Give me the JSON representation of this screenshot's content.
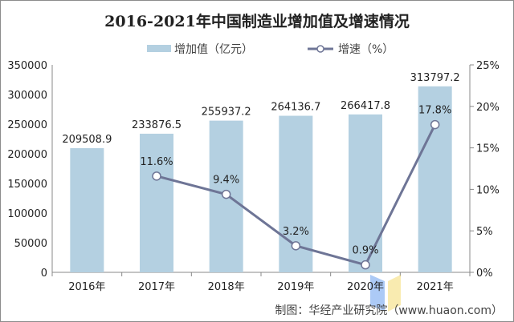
{
  "chart_data": {
    "type": "bar+line",
    "title": "2016-2021年中国制造业增加值及增速情况",
    "categories": [
      "2016年",
      "2017年",
      "2018年",
      "2019年",
      "2020年",
      "2021年"
    ],
    "series": [
      {
        "name": "增加值（亿元）",
        "type": "bar",
        "axis": "left",
        "values": [
          209508.9,
          233876.5,
          255937.2,
          264136.7,
          266417.8,
          313797.2
        ],
        "labels": [
          "209508.9",
          "233876.5",
          "255937.2",
          "264136.7",
          "266417.8",
          "313797.2"
        ],
        "color": "#b4d0e1"
      },
      {
        "name": "增速（%）",
        "type": "line",
        "axis": "right",
        "values": [
          null,
          11.6,
          9.4,
          3.2,
          0.9,
          17.8
        ],
        "labels": [
          "",
          "11.6%",
          "9.4%",
          "3.2%",
          "0.9%",
          "17.8%"
        ],
        "color": "#6e7596"
      }
    ],
    "left_axis": {
      "ylim": [
        0,
        350000
      ],
      "ticks": [
        "0",
        "50000",
        "100000",
        "150000",
        "200000",
        "250000",
        "300000",
        "350000"
      ]
    },
    "right_axis": {
      "ylim": [
        0,
        25
      ],
      "ticks": [
        "0%",
        "5%",
        "10%",
        "15%",
        "20%",
        "25%"
      ]
    },
    "legend": "top-center",
    "grid": false,
    "source": "制图：华经产业研究院（www.huaon.com）",
    "watermark": {
      "text": "华经情报网",
      "sub": "huaon.com"
    }
  }
}
